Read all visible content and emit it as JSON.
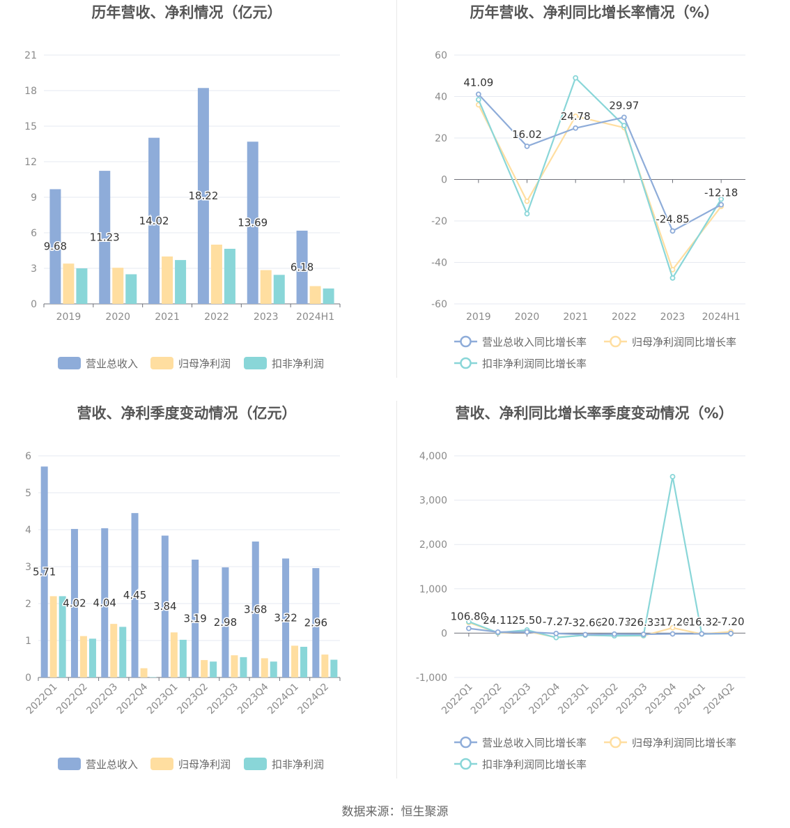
{
  "source_text": "数据来源：恒生聚源",
  "colors": {
    "revenue": "#8eacd9",
    "net_profit": "#ffdea0",
    "deducted": "#89d6d8",
    "grid": "#e6e9f0",
    "axis": "#6e7079",
    "tick_text": "#8a8a8a",
    "label_text": "#333333",
    "title": "#555555"
  },
  "chart_data": [
    {
      "id": "annual_bar",
      "type": "bar",
      "title": "历年营收、净利情况（亿元）",
      "categories": [
        "2019",
        "2020",
        "2021",
        "2022",
        "2023",
        "2024H1"
      ],
      "ylim": [
        0,
        21
      ],
      "yticks": [
        0,
        3,
        6,
        9,
        12,
        15,
        18,
        21
      ],
      "series": [
        {
          "name": "营业总收入",
          "values": [
            9.68,
            11.23,
            14.02,
            18.22,
            13.69,
            6.18
          ],
          "labels": [
            "9.68",
            "11.23",
            "14.02",
            "18.22",
            "13.69",
            "6.18"
          ]
        },
        {
          "name": "归母净利润",
          "values": [
            3.4,
            3.05,
            4.0,
            5.0,
            2.85,
            1.5
          ]
        },
        {
          "name": "扣非净利润",
          "values": [
            3.0,
            2.5,
            3.7,
            4.65,
            2.45,
            1.3
          ]
        }
      ],
      "legend_position": "bottom",
      "grid": true
    },
    {
      "id": "annual_growth",
      "type": "line",
      "title": "历年营收、净利同比增长率情况（%）",
      "categories": [
        "2019",
        "2020",
        "2021",
        "2022",
        "2023",
        "2024H1"
      ],
      "ylim": [
        -60,
        60
      ],
      "yticks": [
        -60,
        -40,
        -20,
        0,
        20,
        40,
        60
      ],
      "series": [
        {
          "name": "营业总收入同比增长率",
          "values": [
            41.09,
            16.02,
            24.78,
            29.97,
            -24.85,
            -12.18
          ],
          "labels": [
            "41.09",
            "16.02",
            "24.78",
            "29.97",
            "-24.85",
            "-12.18"
          ]
        },
        {
          "name": "归母净利润同比增长率",
          "values": [
            36,
            -10.5,
            30.5,
            25,
            -43.5,
            -13
          ]
        },
        {
          "name": "扣非净利润同比增长率",
          "values": [
            38.5,
            -16.5,
            49,
            26,
            -47.5,
            -9.5
          ]
        }
      ],
      "legend_position": "bottom",
      "grid": true
    },
    {
      "id": "quarterly_bar",
      "type": "bar",
      "title": "营收、净利季度变动情况（亿元）",
      "categories": [
        "2022Q1",
        "2022Q2",
        "2022Q3",
        "2022Q4",
        "2023Q1",
        "2023Q2",
        "2023Q3",
        "2023Q4",
        "2024Q1",
        "2024Q2"
      ],
      "ylim": [
        0,
        6
      ],
      "yticks": [
        0,
        1,
        2,
        3,
        4,
        5,
        6
      ],
      "series": [
        {
          "name": "营业总收入",
          "values": [
            5.71,
            4.02,
            4.04,
            4.45,
            3.84,
            3.19,
            2.98,
            3.68,
            3.22,
            2.96
          ],
          "labels": [
            "5.71",
            "4.02",
            "4.04",
            "4.45",
            "3.84",
            "3.19",
            "2.98",
            "3.68",
            "3.22",
            "2.96"
          ]
        },
        {
          "name": "归母净利润",
          "values": [
            2.2,
            1.12,
            1.45,
            0.25,
            1.22,
            0.47,
            0.6,
            0.52,
            0.86,
            0.62
          ]
        },
        {
          "name": "扣非净利润",
          "values": [
            2.2,
            1.05,
            1.37,
            0.01,
            1.02,
            0.43,
            0.55,
            0.43,
            0.83,
            0.48
          ]
        }
      ],
      "legend_position": "bottom",
      "grid": true
    },
    {
      "id": "quarterly_growth",
      "type": "line",
      "title": "营收、净利同比增长率季度变动情况（%）",
      "categories": [
        "2022Q1",
        "2022Q2",
        "2022Q3",
        "2022Q4",
        "2023Q1",
        "2023Q2",
        "2023Q3",
        "2023Q4",
        "2024Q1",
        "2024Q2"
      ],
      "ylim": [
        -1000,
        4000
      ],
      "yticks": [
        -1000,
        0,
        1000,
        2000,
        3000,
        4000
      ],
      "ytick_labels": [
        "-1,000",
        "0",
        "1,000",
        "2,000",
        "3,000",
        "4,000"
      ],
      "series": [
        {
          "name": "营业总收入同比增长率",
          "values": [
            106.8,
            24.11,
            25.5,
            -7.27,
            -32.66,
            -20.73,
            -26.33,
            -17.2,
            -16.32,
            -7.2
          ],
          "labels": [
            "106.80",
            "24.11",
            "25.50",
            "-7.27",
            "-32.66",
            "-20.73",
            "-26.33",
            "-17.20",
            "-16.32",
            "-7.20"
          ]
        },
        {
          "name": "归母净利润同比增长率",
          "values": [
            240,
            5,
            40,
            -95,
            -45,
            -58,
            -58,
            120,
            -20,
            30
          ]
        },
        {
          "name": "扣非净利润同比增长率",
          "values": [
            260,
            10,
            70,
            -100,
            -45,
            -60,
            -55,
            3530,
            -20,
            -10
          ]
        }
      ],
      "legend_position": "bottom",
      "grid": true
    }
  ]
}
